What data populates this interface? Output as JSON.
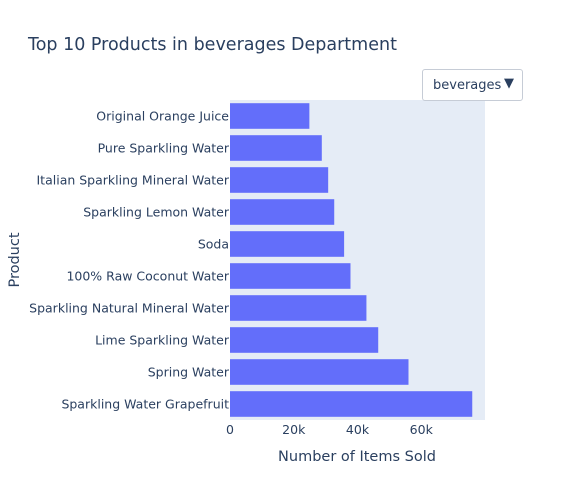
{
  "chart_data": {
    "type": "bar",
    "orientation": "horizontal",
    "title": "Top 10 Products in beverages Department",
    "xlabel": "Number of Items Sold",
    "ylabel": "Product",
    "xlim": [
      0,
      80000
    ],
    "xticks": [
      0,
      20000,
      40000,
      60000
    ],
    "xtick_labels": [
      "0",
      "20k",
      "40k",
      "60k"
    ],
    "categories": [
      "Original Orange Juice",
      "Pure Sparkling Water",
      "Italian Sparkling Mineral Water",
      "Sparkling Lemon Water",
      "Soda",
      "100% Raw Coconut Water",
      "Sparkling Natural Mineral Water",
      "Lime Sparkling Water",
      "Spring Water",
      "Sparkling Water Grapefruit"
    ],
    "values": [
      24900,
      28800,
      30800,
      32700,
      35800,
      37800,
      42800,
      46500,
      56000,
      76000
    ],
    "bar_color": "#636efa",
    "plot_bg_color": "#e5ecf6",
    "grid": false
  },
  "dropdown": {
    "selected": "beverages",
    "caret": "▼"
  }
}
